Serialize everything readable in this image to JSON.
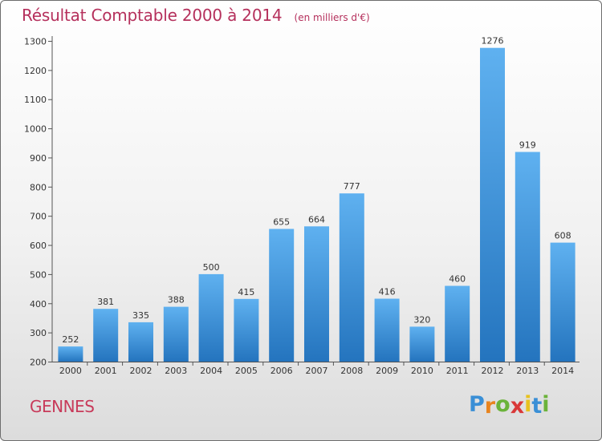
{
  "chart_data": {
    "type": "bar",
    "title": "Résultat Comptable 2000 à 2014",
    "subtitle": "(en milliers d'€)",
    "categories": [
      "2000",
      "2001",
      "2002",
      "2003",
      "2004",
      "2005",
      "2006",
      "2007",
      "2008",
      "2009",
      "2010",
      "2011",
      "2012",
      "2013",
      "2014"
    ],
    "values": [
      252,
      381,
      335,
      388,
      500,
      415,
      655,
      664,
      777,
      416,
      320,
      460,
      1276,
      919,
      608
    ],
    "ylim": [
      200,
      1300
    ],
    "yticks": [
      200,
      300,
      400,
      500,
      600,
      700,
      800,
      900,
      1000,
      1100,
      1200,
      1300
    ],
    "xlabel": "",
    "ylabel": "",
    "grid": false,
    "bar_color": "#3b8fd8"
  },
  "footer": {
    "commune": "GENNES",
    "brand_letters": [
      "P",
      "r",
      "o",
      "x",
      "i",
      "t",
      "i"
    ],
    "brand_colors": [
      "#3a8fd6",
      "#e8841e",
      "#6bb33a",
      "#d93838",
      "#e8c21e",
      "#3a8fd6",
      "#6bb33a"
    ]
  }
}
